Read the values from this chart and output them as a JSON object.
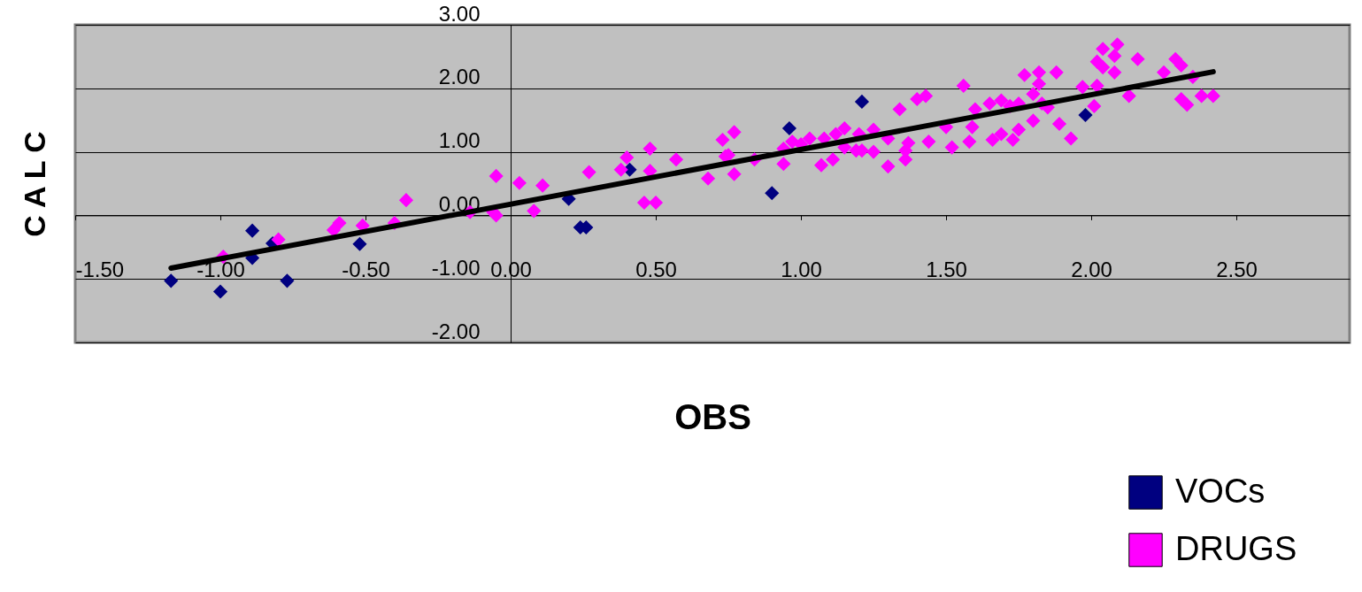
{
  "chart_data": {
    "type": "scatter",
    "xlabel": "OBS",
    "ylabel": "C A L C",
    "xlim": [
      -1.5,
      2.89
    ],
    "ylim": [
      -2,
      3
    ],
    "xticks": [
      {
        "value": -1.5,
        "label": "-1.50"
      },
      {
        "value": -1,
        "label": "-1.00"
      },
      {
        "value": -0.5,
        "label": "-0.50"
      },
      {
        "value": 0,
        "label": "0.00"
      },
      {
        "value": 0.5,
        "label": "0.50"
      },
      {
        "value": 1,
        "label": "1.00"
      },
      {
        "value": 1.5,
        "label": "1.50"
      },
      {
        "value": 2,
        "label": "2.00"
      },
      {
        "value": 2.5,
        "label": "2.50"
      }
    ],
    "yticks": [
      {
        "value": -2,
        "label": "-2.00"
      },
      {
        "value": -1,
        "label": "-1.00"
      },
      {
        "value": 0,
        "label": "0.00"
      },
      {
        "value": 1,
        "label": "1.00"
      },
      {
        "value": 2,
        "label": "2.00"
      },
      {
        "value": 3,
        "label": "3.00"
      }
    ],
    "grid": "y",
    "legend": "bottom right",
    "marker": "diamond",
    "series": [
      {
        "name": "VOCs",
        "color": "#000080",
        "x": [
          -1.17,
          -1.0,
          -0.89,
          -0.89,
          -0.82,
          -0.77,
          -0.52,
          0.2,
          0.24,
          0.26,
          0.41,
          0.9,
          0.96,
          1.21,
          1.43,
          1.98
        ],
        "values": [
          -1.03,
          -1.2,
          -0.24,
          -0.67,
          -0.44,
          -1.03,
          -0.45,
          0.26,
          -0.19,
          -0.19,
          0.72,
          0.35,
          1.37,
          1.79,
          null,
          1.58
        ]
      },
      {
        "name": "DRUGS",
        "color": "#ff00ff",
        "x": [
          -0.99,
          -0.8,
          -0.61,
          -0.59,
          -0.51,
          -0.4,
          -0.36,
          -0.14,
          -0.06,
          -0.05,
          -0.05,
          0.03,
          0.08,
          0.11,
          0.27,
          0.38,
          0.4,
          0.46,
          0.48,
          0.48,
          0.5,
          0.57,
          0.68,
          0.73,
          0.74,
          0.75,
          0.77,
          0.77,
          0.84,
          0.94,
          0.94,
          0.97,
          1.0,
          1.03,
          1.07,
          1.08,
          1.11,
          1.12,
          1.15,
          1.15,
          1.19,
          1.2,
          1.21,
          1.25,
          1.25,
          1.3,
          1.3,
          1.34,
          1.36,
          1.36,
          1.37,
          1.4,
          1.43,
          1.44,
          1.5,
          1.52,
          1.56,
          1.58,
          1.59,
          1.6,
          1.65,
          1.66,
          1.69,
          1.69,
          1.72,
          1.73,
          1.75,
          1.75,
          1.77,
          1.8,
          1.8,
          1.82,
          1.82,
          1.83,
          1.85,
          1.88,
          1.89,
          1.93,
          1.97,
          2.01,
          2.02,
          2.02,
          2.04,
          2.04,
          2.08,
          2.09,
          2.08,
          2.13,
          2.16,
          2.25,
          2.29,
          2.31,
          2.31,
          2.33,
          2.35,
          2.38,
          2.42
        ],
        "values": [
          -0.65,
          -0.38,
          -0.23,
          -0.12,
          -0.16,
          -0.12,
          0.24,
          0.05,
          0.05,
          0.62,
          0.0,
          0.51,
          0.07,
          0.47,
          0.68,
          0.72,
          0.91,
          0.2,
          0.7,
          1.05,
          0.2,
          0.88,
          0.58,
          1.19,
          0.93,
          0.95,
          1.31,
          0.65,
          0.88,
          0.81,
          1.05,
          1.16,
          1.12,
          1.21,
          0.79,
          1.21,
          0.88,
          1.28,
          1.37,
          1.07,
          1.02,
          1.28,
          1.02,
          1.35,
          1.0,
          1.21,
          0.77,
          1.67,
          1.02,
          0.88,
          1.14,
          1.83,
          1.88,
          1.16,
          1.39,
          1.07,
          2.04,
          1.16,
          1.39,
          1.67,
          1.76,
          1.19,
          1.81,
          1.28,
          1.72,
          1.19,
          1.76,
          1.35,
          2.21,
          1.49,
          1.91,
          2.25,
          2.07,
          1.76,
          1.7,
          2.25,
          1.44,
          1.21,
          2.02,
          1.72,
          2.04,
          2.42,
          2.62,
          2.33,
          2.51,
          2.69,
          2.25,
          1.88,
          2.46,
          2.25,
          2.46,
          2.36,
          1.83,
          1.74,
          2.18,
          1.88,
          1.88
        ]
      },
      {
        "type": "line",
        "marker": "none",
        "color": "#000000",
        "x": [
          -1.17,
          2.42
        ],
        "values": [
          -0.83,
          2.26
        ]
      }
    ]
  }
}
